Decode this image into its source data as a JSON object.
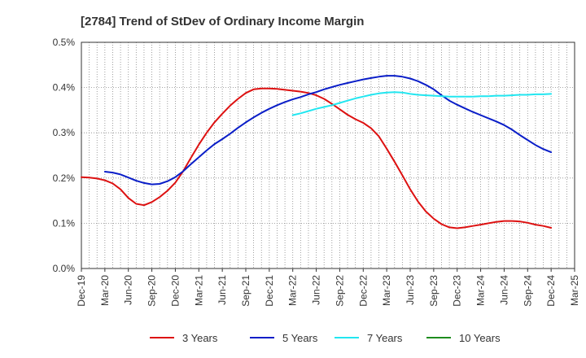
{
  "chart_data": {
    "type": "line",
    "title": "[2784]  Trend of StDev of Ordinary Income Margin",
    "xlabel": "",
    "ylabel": "",
    "x_ticks": [
      "Dec-19",
      "Mar-20",
      "Jun-20",
      "Sep-20",
      "Dec-20",
      "Mar-21",
      "Jun-21",
      "Sep-21",
      "Dec-21",
      "Mar-22",
      "Jun-22",
      "Sep-22",
      "Dec-22",
      "Mar-23",
      "Jun-23",
      "Sep-23",
      "Dec-23",
      "Mar-24",
      "Jun-24",
      "Sep-24",
      "Dec-24",
      "Mar-25"
    ],
    "y_ticks": [
      "0.0%",
      "0.1%",
      "0.2%",
      "0.3%",
      "0.4%",
      "0.5%"
    ],
    "ylim": [
      0,
      0.5
    ],
    "y_unit": "%",
    "grid": "dotted vertical and horizontal",
    "legend_position": "bottom",
    "series": [
      {
        "name": "3 Years",
        "color": "#dd1111",
        "points": [
          [
            "Dec-19",
            0.202
          ],
          [
            "Jan-20",
            0.201
          ],
          [
            "Feb-20",
            0.199
          ],
          [
            "Mar-20",
            0.195
          ],
          [
            "Apr-20",
            0.188
          ],
          [
            "May-20",
            0.175
          ],
          [
            "Jun-20",
            0.156
          ],
          [
            "Jul-20",
            0.143
          ],
          [
            "Aug-20",
            0.14
          ],
          [
            "Sep-20",
            0.147
          ],
          [
            "Oct-20",
            0.158
          ],
          [
            "Nov-20",
            0.172
          ],
          [
            "Dec-20",
            0.19
          ],
          [
            "Jan-21",
            0.215
          ],
          [
            "Feb-21",
            0.245
          ],
          [
            "Mar-21",
            0.274
          ],
          [
            "Apr-21",
            0.3
          ],
          [
            "May-21",
            0.323
          ],
          [
            "Jun-21",
            0.342
          ],
          [
            "Jul-21",
            0.36
          ],
          [
            "Aug-21",
            0.375
          ],
          [
            "Sep-21",
            0.388
          ],
          [
            "Oct-21",
            0.396
          ],
          [
            "Nov-21",
            0.398
          ],
          [
            "Dec-21",
            0.398
          ],
          [
            "Jan-22",
            0.397
          ],
          [
            "Feb-22",
            0.395
          ],
          [
            "Mar-22",
            0.393
          ],
          [
            "Apr-22",
            0.391
          ],
          [
            "May-22",
            0.388
          ],
          [
            "Jun-22",
            0.383
          ],
          [
            "Jul-22",
            0.375
          ],
          [
            "Aug-22",
            0.364
          ],
          [
            "Sep-22",
            0.352
          ],
          [
            "Oct-22",
            0.34
          ],
          [
            "Nov-22",
            0.33
          ],
          [
            "Dec-22",
            0.322
          ],
          [
            "Jan-23",
            0.31
          ],
          [
            "Feb-23",
            0.292
          ],
          [
            "Mar-23",
            0.265
          ],
          [
            "Apr-23",
            0.236
          ],
          [
            "May-23",
            0.206
          ],
          [
            "Jun-23",
            0.175
          ],
          [
            "Jul-23",
            0.148
          ],
          [
            "Aug-23",
            0.126
          ],
          [
            "Sep-23",
            0.11
          ],
          [
            "Oct-23",
            0.098
          ],
          [
            "Nov-23",
            0.091
          ],
          [
            "Dec-23",
            0.089
          ],
          [
            "Jan-24",
            0.091
          ],
          [
            "Feb-24",
            0.094
          ],
          [
            "Mar-24",
            0.097
          ],
          [
            "Apr-24",
            0.1
          ],
          [
            "May-24",
            0.103
          ],
          [
            "Jun-24",
            0.105
          ],
          [
            "Jul-24",
            0.105
          ],
          [
            "Aug-24",
            0.104
          ],
          [
            "Sep-24",
            0.101
          ],
          [
            "Oct-24",
            0.097
          ],
          [
            "Nov-24",
            0.094
          ],
          [
            "Dec-24",
            0.09
          ]
        ]
      },
      {
        "name": "5 Years",
        "color": "#0a1ec8",
        "points": [
          [
            "Mar-20",
            0.214
          ],
          [
            "Apr-20",
            0.212
          ],
          [
            "May-20",
            0.208
          ],
          [
            "Jun-20",
            0.201
          ],
          [
            "Jul-20",
            0.194
          ],
          [
            "Aug-20",
            0.189
          ],
          [
            "Sep-20",
            0.186
          ],
          [
            "Oct-20",
            0.187
          ],
          [
            "Nov-20",
            0.193
          ],
          [
            "Dec-20",
            0.202
          ],
          [
            "Jan-21",
            0.215
          ],
          [
            "Feb-21",
            0.231
          ],
          [
            "Mar-21",
            0.246
          ],
          [
            "Apr-21",
            0.261
          ],
          [
            "May-21",
            0.275
          ],
          [
            "Jun-21",
            0.286
          ],
          [
            "Jul-21",
            0.298
          ],
          [
            "Aug-21",
            0.311
          ],
          [
            "Sep-21",
            0.323
          ],
          [
            "Oct-21",
            0.334
          ],
          [
            "Nov-21",
            0.344
          ],
          [
            "Dec-21",
            0.353
          ],
          [
            "Jan-22",
            0.361
          ],
          [
            "Feb-22",
            0.368
          ],
          [
            "Mar-22",
            0.374
          ],
          [
            "Apr-22",
            0.379
          ],
          [
            "May-22",
            0.385
          ],
          [
            "Jun-22",
            0.39
          ],
          [
            "Jul-22",
            0.396
          ],
          [
            "Aug-22",
            0.401
          ],
          [
            "Sep-22",
            0.406
          ],
          [
            "Oct-22",
            0.41
          ],
          [
            "Nov-22",
            0.414
          ],
          [
            "Dec-22",
            0.418
          ],
          [
            "Jan-23",
            0.421
          ],
          [
            "Feb-23",
            0.424
          ],
          [
            "Mar-23",
            0.426
          ],
          [
            "Apr-23",
            0.426
          ],
          [
            "May-23",
            0.424
          ],
          [
            "Jun-23",
            0.42
          ],
          [
            "Jul-23",
            0.414
          ],
          [
            "Aug-23",
            0.406
          ],
          [
            "Sep-23",
            0.396
          ],
          [
            "Oct-23",
            0.383
          ],
          [
            "Nov-23",
            0.371
          ],
          [
            "Dec-23",
            0.362
          ],
          [
            "Jan-24",
            0.354
          ],
          [
            "Feb-24",
            0.346
          ],
          [
            "Mar-24",
            0.339
          ],
          [
            "Apr-24",
            0.332
          ],
          [
            "May-24",
            0.325
          ],
          [
            "Jun-24",
            0.317
          ],
          [
            "Jul-24",
            0.307
          ],
          [
            "Aug-24",
            0.295
          ],
          [
            "Sep-24",
            0.284
          ],
          [
            "Oct-24",
            0.273
          ],
          [
            "Nov-24",
            0.264
          ],
          [
            "Dec-24",
            0.257
          ]
        ]
      },
      {
        "name": "7 Years",
        "color": "#22e6f0",
        "points": [
          [
            "Mar-22",
            0.339
          ],
          [
            "Apr-22",
            0.343
          ],
          [
            "May-22",
            0.348
          ],
          [
            "Jun-22",
            0.353
          ],
          [
            "Jul-22",
            0.357
          ],
          [
            "Aug-22",
            0.361
          ],
          [
            "Sep-22",
            0.366
          ],
          [
            "Oct-22",
            0.371
          ],
          [
            "Nov-22",
            0.376
          ],
          [
            "Dec-22",
            0.38
          ],
          [
            "Jan-23",
            0.384
          ],
          [
            "Feb-23",
            0.387
          ],
          [
            "Mar-23",
            0.389
          ],
          [
            "Apr-23",
            0.39
          ],
          [
            "May-23",
            0.389
          ],
          [
            "Jun-23",
            0.386
          ],
          [
            "Jul-23",
            0.384
          ],
          [
            "Aug-23",
            0.383
          ],
          [
            "Sep-23",
            0.382
          ],
          [
            "Oct-23",
            0.381
          ],
          [
            "Nov-23",
            0.38
          ],
          [
            "Dec-23",
            0.38
          ],
          [
            "Jan-24",
            0.38
          ],
          [
            "Feb-24",
            0.38
          ],
          [
            "Mar-24",
            0.381
          ],
          [
            "Apr-24",
            0.381
          ],
          [
            "May-24",
            0.382
          ],
          [
            "Jun-24",
            0.382
          ],
          [
            "Jul-24",
            0.383
          ],
          [
            "Aug-24",
            0.384
          ],
          [
            "Sep-24",
            0.384
          ],
          [
            "Oct-24",
            0.385
          ],
          [
            "Nov-24",
            0.385
          ],
          [
            "Dec-24",
            0.386
          ]
        ]
      },
      {
        "name": "10 Years",
        "color": "#1e8c1e",
        "points": []
      }
    ]
  }
}
